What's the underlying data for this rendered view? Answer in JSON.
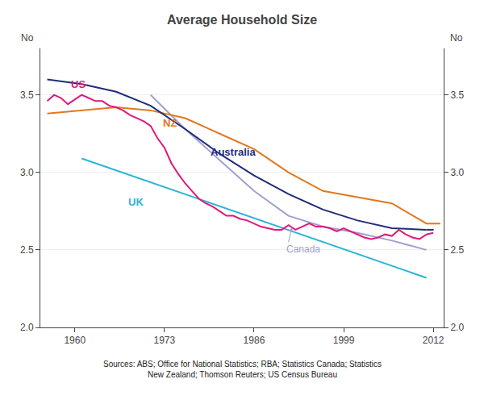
{
  "chart_data": {
    "type": "line",
    "title": "Average Household Size",
    "ylabel": "No",
    "y2label": "No",
    "source": "Sources: ABS; Office for National Statistics; RBA; Statistics Canada; Statistics\nNew Zealand; Thomson Reuters; US Census Bureau",
    "xlim": [
      1955,
      2013.5
    ],
    "xticks": [
      1960,
      1973,
      1986,
      1999,
      2012
    ],
    "ylim": [
      2.0,
      3.8
    ],
    "yticks": [
      {
        "value": 2.0,
        "label": "2.0"
      },
      2.5,
      {
        "value": 3.0,
        "label": "3.0"
      },
      3.5
    ],
    "y2lim": [
      2.0,
      3.8
    ],
    "y2ticks": [
      {
        "value": 2.0,
        "label": "2.0"
      },
      2.5,
      {
        "value": 3.0,
        "label": "3.0"
      },
      3.5
    ],
    "grid": "y",
    "series": [
      {
        "color": "#2ab5d8",
        "line_style": "solid",
        "x": [
          1961,
          2011
        ],
        "values": [
          3.09,
          2.32
        ]
      },
      {
        "color": "#a0a0d0",
        "line_style": "solid",
        "x": [
          1971,
          1976,
          1981,
          1986,
          1991,
          1996,
          2001,
          2006,
          2011
        ],
        "values": [
          3.5,
          3.28,
          3.08,
          2.88,
          2.72,
          2.65,
          2.61,
          2.56,
          2.5
        ]
      },
      {
        "color": "#e07820",
        "line_style": "solid",
        "x": [
          1956,
          1961,
          1966,
          1971,
          1976,
          1981,
          1986,
          1991,
          1996,
          2001,
          2006,
          2011,
          2013
        ],
        "values": [
          3.38,
          3.4,
          3.42,
          3.4,
          3.35,
          3.25,
          3.15,
          3.0,
          2.88,
          2.84,
          2.8,
          2.67,
          2.67
        ]
      },
      {
        "color": "#e0197a",
        "line_style": "solid",
        "x": [
          1956,
          1957,
          1958,
          1959,
          1960,
          1961,
          1962,
          1963,
          1964,
          1965,
          1966,
          1967,
          1968,
          1969,
          1970,
          1971,
          1972,
          1973,
          1974,
          1975,
          1976,
          1977,
          1978,
          1979,
          1980,
          1981,
          1982,
          1983,
          1984,
          1985,
          1986,
          1987,
          1988,
          1989,
          1990,
          1991,
          1992,
          1993,
          1994,
          1995,
          1996,
          1997,
          1998,
          1999,
          2000,
          2001,
          2002,
          2003,
          2004,
          2005,
          2006,
          2007,
          2008,
          2009,
          2010,
          2011,
          2012
        ],
        "values": [
          3.46,
          3.5,
          3.48,
          3.44,
          3.47,
          3.5,
          3.48,
          3.46,
          3.46,
          3.43,
          3.42,
          3.4,
          3.37,
          3.35,
          3.33,
          3.3,
          3.22,
          3.16,
          3.06,
          2.99,
          2.93,
          2.88,
          2.83,
          2.8,
          2.78,
          2.75,
          2.72,
          2.72,
          2.7,
          2.69,
          2.67,
          2.65,
          2.64,
          2.63,
          2.63,
          2.66,
          2.63,
          2.65,
          2.67,
          2.65,
          2.65,
          2.64,
          2.62,
          2.64,
          2.62,
          2.6,
          2.58,
          2.57,
          2.58,
          2.6,
          2.59,
          2.63,
          2.6,
          2.58,
          2.57,
          2.6,
          2.61
        ]
      },
      {
        "color": "#1f2d7a",
        "line_style": "solid",
        "x": [
          1956,
          1961,
          1966,
          1971,
          1976,
          1981,
          1986,
          1991,
          1996,
          2001,
          2006,
          2011
        ],
        "values": [
          3.6,
          3.57,
          3.52,
          3.43,
          3.28,
          3.12,
          2.98,
          2.86,
          2.76,
          2.69,
          2.64,
          2.63
        ]
      },
      {
        "color": "#1f2d7a",
        "line_style": "dashed",
        "x": [
          2011,
          2013
        ],
        "values": [
          2.63,
          2.63
        ]
      }
    ],
    "annotations": [
      {
        "text": "US",
        "x": 1959.2,
        "y": 3.52,
        "color": "#e0197a"
      },
      {
        "text": "NZ",
        "x": 1972.5,
        "y": 3.27,
        "color": "#e07820"
      },
      {
        "text": "Australia",
        "x": 1979.5,
        "y": 3.08,
        "color": "#1f2d7a"
      },
      {
        "text": "UK",
        "x": 1967.5,
        "y": 2.76,
        "color": "#2ab5d8"
      },
      {
        "text": "Canada",
        "x": 1990.5,
        "y": 2.46,
        "arrow_to": [
          1991.5,
          2.645
        ],
        "color": "#a0a0d0"
      }
    ]
  }
}
